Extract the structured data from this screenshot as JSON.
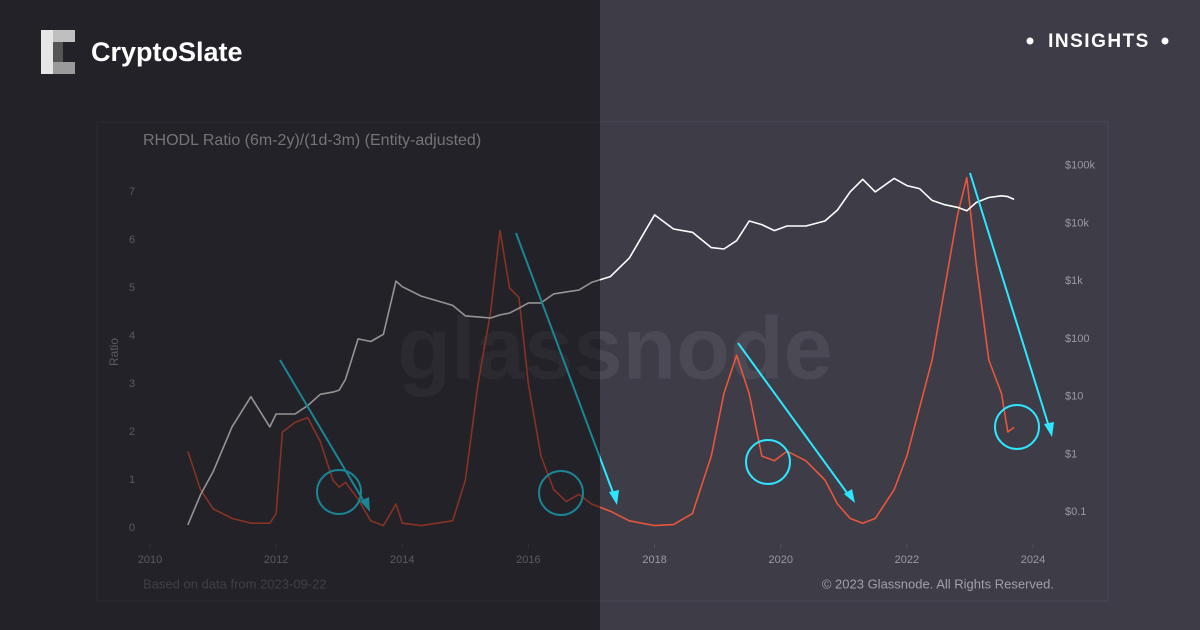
{
  "header": {
    "brand": "CryptoSlate",
    "tag": "INSIGHTS"
  },
  "chart_data": {
    "type": "line",
    "title": "RHODL Ratio (6m-2y)/(1d-3m) (Entity-adjusted)",
    "y_label": "Ratio",
    "watermark": "glassnode",
    "footnote": "Based on data from 2023-09-22",
    "copyright": "© 2023 Glassnode. All Rights Reserved.",
    "x": [
      2010.6,
      2010.8,
      2011.0,
      2011.3,
      2011.6,
      2011.9,
      2012.0,
      2012.1,
      2012.3,
      2012.5,
      2012.7,
      2012.9,
      2013.0,
      2013.1,
      2013.3,
      2013.5,
      2013.7,
      2013.9,
      2014.0,
      2014.3,
      2014.8,
      2015.0,
      2015.2,
      2015.4,
      2015.55,
      2015.7,
      2015.85,
      2016.0,
      2016.2,
      2016.4,
      2016.6,
      2016.8,
      2017.0,
      2017.3,
      2017.6,
      2018.0,
      2018.3,
      2018.6,
      2018.9,
      2019.1,
      2019.3,
      2019.5,
      2019.7,
      2019.9,
      2020.1,
      2020.4,
      2020.7,
      2020.9,
      2021.1,
      2021.3,
      2021.5,
      2021.8,
      2022.0,
      2022.2,
      2022.4,
      2022.6,
      2022.8,
      2022.95,
      2023.1,
      2023.3,
      2023.5,
      2023.6,
      2023.7
    ],
    "series": [
      {
        "color": "#e8563c",
        "values": [
          1.6,
          0.8,
          0.4,
          0.2,
          0.1,
          0.1,
          0.3,
          2.0,
          2.2,
          2.3,
          1.8,
          1.0,
          0.85,
          0.95,
          0.6,
          0.15,
          0.05,
          0.5,
          0.1,
          0.05,
          0.15,
          1.0,
          3.0,
          4.5,
          6.2,
          5.0,
          4.8,
          3.0,
          1.5,
          0.8,
          0.55,
          0.7,
          0.5,
          0.35,
          0.15,
          0.05,
          0.07,
          0.3,
          1.5,
          2.8,
          3.6,
          2.8,
          1.5,
          1.4,
          1.6,
          1.4,
          1.0,
          0.5,
          0.2,
          0.1,
          0.2,
          0.8,
          1.5,
          2.5,
          3.5,
          5.0,
          6.5,
          7.3,
          5.5,
          3.5,
          2.8,
          2.0,
          2.1
        ]
      },
      {
        "color": "#ffffff",
        "axis": "y2",
        "values": [
          0.06,
          0.2,
          0.5,
          3,
          10,
          3,
          5,
          5,
          5,
          7,
          11,
          12,
          13,
          20,
          100,
          90,
          120,
          1000,
          800,
          550,
          380,
          250,
          240,
          230,
          260,
          280,
          340,
          420,
          420,
          600,
          650,
          700,
          950,
          1200,
          2500,
          14000,
          8000,
          7000,
          3800,
          3600,
          5000,
          11000,
          9500,
          7500,
          9000,
          9000,
          11000,
          17000,
          35000,
          58000,
          35000,
          60000,
          45000,
          40000,
          25000,
          21000,
          19000,
          16500,
          23000,
          28000,
          30000,
          29000,
          26000
        ]
      }
    ],
    "xlim": [
      2010,
      2024
    ],
    "xticks": [
      2010,
      2012,
      2014,
      2016,
      2018,
      2020,
      2022,
      2024
    ],
    "ylim": [
      -0.3,
      7.6
    ],
    "yticks": [
      0,
      1,
      2,
      3,
      4,
      5,
      6,
      7
    ],
    "y2lim": [
      0.03,
      110000
    ],
    "y2log": true,
    "y2ticks": [
      {
        "value": 0.1,
        "label": "$0.1"
      },
      {
        "value": 1,
        "label": "$1"
      },
      {
        "value": 10,
        "label": "$10"
      },
      {
        "value": 100,
        "label": "$100"
      },
      {
        "value": 1000,
        "label": "$1k"
      },
      {
        "value": 10000,
        "label": "$10k"
      },
      {
        "value": 100000,
        "label": "$100k"
      }
    ]
  }
}
